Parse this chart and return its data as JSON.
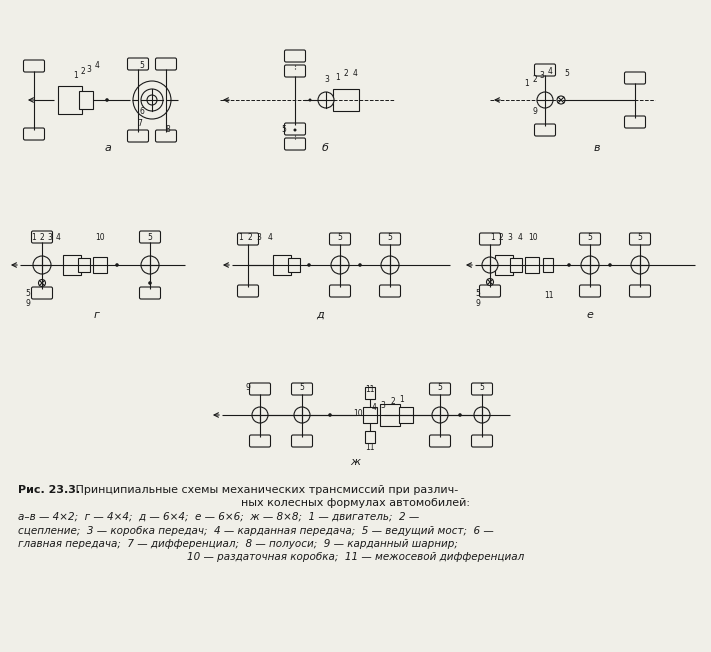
{
  "bg_color": "#f0efe8",
  "line_color": "#1a1a1a",
  "fig_w": 7.11,
  "fig_h": 6.52,
  "dpi": 100,
  "caption": {
    "line1_bold": "Рис. 23.3.",
    "line1_rest": " Принципиальные схемы механических трансмиссий при различ-",
    "line2": "ных колесных формулах автомобилей:",
    "line3": "а–в — 4×2;  г — 4×4;  д — 6×4;  е — 6×6;  ж — 8×8;  1 — двигатель;  2 —",
    "line4": "сцепление;  3 — коробка передач;  4 — карданная передача;  5 — ведущий мост;  6 —",
    "line5": "главная передача;  7 — дифференциал;  8 — полуоси;  9 — карданный шарнир;",
    "line6": "10 — раздаточная коробка;  11 — межосевой дифференциал"
  }
}
